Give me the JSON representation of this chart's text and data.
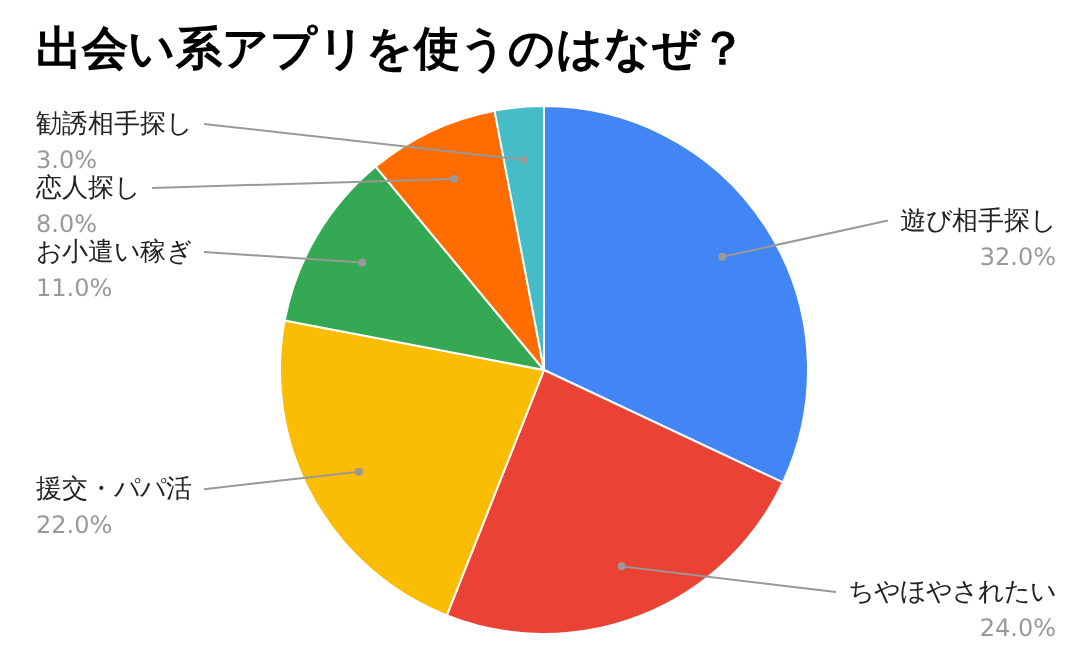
{
  "chart_data": {
    "type": "pie",
    "title": "出会い系アプリを使うのはなぜ？",
    "categories": [
      "遊び相手探し",
      "ちやほやされたい",
      "援交・パパ活",
      "お小遣い稼ぎ",
      "恋人探し",
      "勧誘相手探し"
    ],
    "values": [
      32.0,
      24.0,
      22.0,
      11.0,
      8.0,
      3.0
    ],
    "value_labels": [
      "32.0%",
      "24.0%",
      "22.0%",
      "11.0%",
      "8.0%",
      "3.0%"
    ],
    "colors": [
      "#4285f4",
      "#ea4335",
      "#fbbc04",
      "#34a853",
      "#ff6d01",
      "#46bdc6"
    ]
  }
}
